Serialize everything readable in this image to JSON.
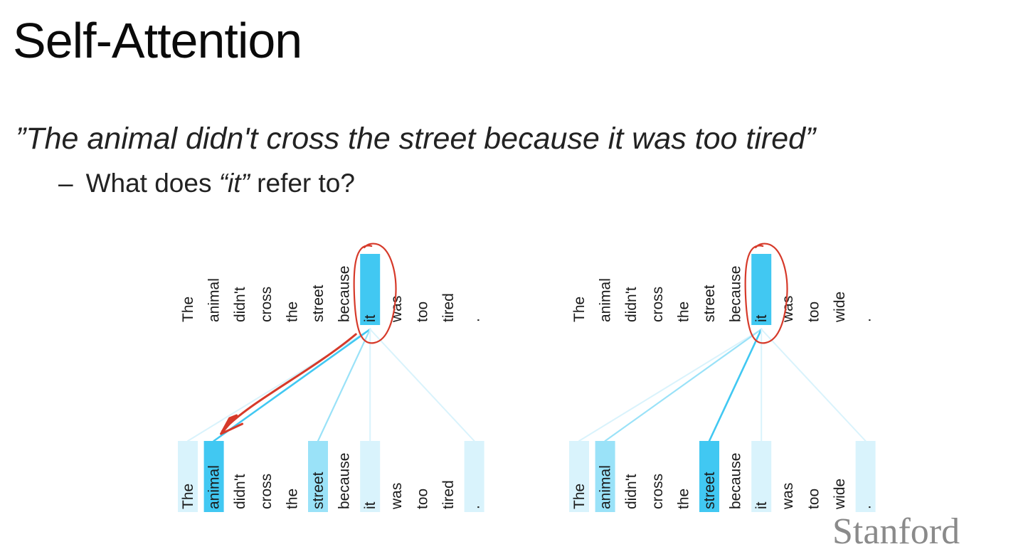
{
  "slide": {
    "title": "Self-Attention",
    "quote": "”The animal didn't cross the street because it was too tired”",
    "bullet": {
      "dash": "–",
      "prefix": "What does ",
      "emphasis": "“it”",
      "suffix": " refer to?"
    },
    "logo": "Stanford"
  },
  "colors": {
    "strong": "#41c8f2",
    "medium": "#9ae2f8",
    "faint": "#d9f3fc",
    "annotation": "#d63a2a"
  },
  "diagrams": [
    {
      "tokens": [
        "The",
        "animal",
        "didn't",
        "cross",
        "the",
        "street",
        "because",
        "it",
        "was",
        "too",
        "tired",
        "."
      ],
      "query_index": 7,
      "attention": [
        0.15,
        0.85,
        0,
        0,
        0,
        0.45,
        0,
        0.15,
        0,
        0,
        0,
        0.15
      ],
      "annotated": true
    },
    {
      "tokens": [
        "The",
        "animal",
        "didn't",
        "cross",
        "the",
        "street",
        "because",
        "it",
        "was",
        "too",
        "wide",
        "."
      ],
      "query_index": 7,
      "attention": [
        0.2,
        0.35,
        0,
        0,
        0,
        0.85,
        0,
        0.15,
        0,
        0,
        0,
        0.15
      ],
      "annotated": true
    }
  ]
}
